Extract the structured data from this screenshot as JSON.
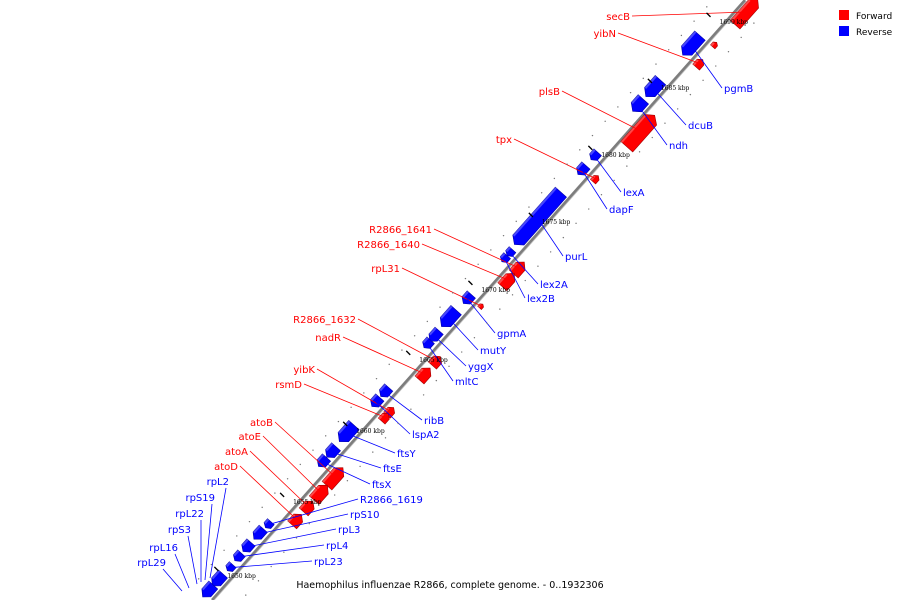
{
  "caption": "Haemophilus influenzae R2866, complete genome. - 0..1932306",
  "legend": [
    {
      "label": "Forward",
      "color": "#ff0000"
    },
    {
      "label": "Reverse",
      "color": "#0000ff"
    }
  ],
  "colors": {
    "forward": "#ff0000",
    "reverse": "#0000ff",
    "backbone": "#808080"
  },
  "ticks": [
    {
      "label": "1650 kbp"
    },
    {
      "label": "1655 kbp"
    },
    {
      "label": "1660 kbp"
    },
    {
      "label": "1665 kbp"
    },
    {
      "label": "1670 kbp"
    },
    {
      "label": "1675 kbp"
    },
    {
      "label": "1680 kbp"
    },
    {
      "label": "1685 kbp"
    },
    {
      "label": "1690 kbp"
    }
  ],
  "forward_genes": [
    {
      "name": "secB"
    },
    {
      "name": "yibN"
    },
    {
      "name": "plsB"
    },
    {
      "name": "tpx"
    },
    {
      "name": "R2866_1641"
    },
    {
      "name": "R2866_1640"
    },
    {
      "name": "rpL31"
    },
    {
      "name": "R2866_1632"
    },
    {
      "name": "nadR"
    },
    {
      "name": "yibK"
    },
    {
      "name": "rsmD"
    },
    {
      "name": "atoB"
    },
    {
      "name": "atoE"
    },
    {
      "name": "atoA"
    },
    {
      "name": "atoD"
    }
  ],
  "reverse_genes": [
    {
      "name": "pgmB"
    },
    {
      "name": "dcuB"
    },
    {
      "name": "ndh"
    },
    {
      "name": "lexA"
    },
    {
      "name": "dapF"
    },
    {
      "name": "purL"
    },
    {
      "name": "lex2A"
    },
    {
      "name": "lex2B"
    },
    {
      "name": "gpmA"
    },
    {
      "name": "mutY"
    },
    {
      "name": "yggX"
    },
    {
      "name": "mltC"
    },
    {
      "name": "ribB"
    },
    {
      "name": "lspA2"
    },
    {
      "name": "ftsY"
    },
    {
      "name": "ftsE"
    },
    {
      "name": "ftsX"
    },
    {
      "name": "R2866_1619"
    },
    {
      "name": "rpS10"
    },
    {
      "name": "rpL3"
    },
    {
      "name": "rpL4"
    },
    {
      "name": "rpL23"
    }
  ],
  "left_ribosomal_labels": [
    {
      "name": "rpL2"
    },
    {
      "name": "rpS19"
    },
    {
      "name": "rpL22"
    },
    {
      "name": "rpS3"
    },
    {
      "name": "rpL16"
    },
    {
      "name": "rpL29"
    }
  ]
}
